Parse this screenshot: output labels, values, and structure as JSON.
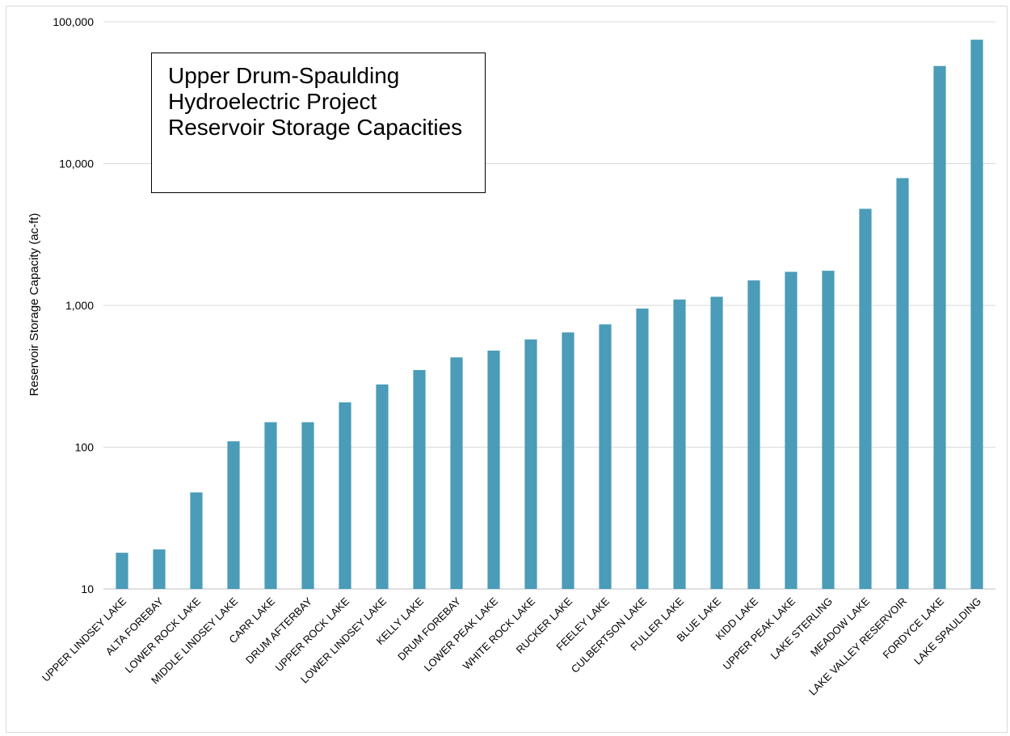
{
  "chart_data": {
    "type": "bar",
    "title": "Upper Drum-Spaulding Hydroelectric Project Reservoir Storage Capacities",
    "ylabel": "Reservoir Storage Capacity (ac-ft)",
    "xlabel": "",
    "yscale": "log",
    "ylim": [
      10,
      100000
    ],
    "yticks": [
      "10",
      "100",
      "1,000",
      "10,000",
      "100,000"
    ],
    "grid": true,
    "legend": "none",
    "bar_color": "#4a9cb8",
    "categories": [
      "UPPER LINDSEY LAKE",
      "ALTA FOREBAY",
      "LOWER ROCK LAKE",
      "MIDDLE LINDSEY LAKE",
      "CARR LAKE",
      "DRUM AFTERBAY",
      "UPPER ROCK LAKE",
      "LOWER LINDSEY LAKE",
      "KELLY LAKE",
      "DRUM FOREBAY",
      "LOWER PEAK LAKE",
      "WHITE ROCK LAKE",
      "RUCKER LAKE",
      "FEELEY LAKE",
      "CULBERTSON LAKE",
      "FULLER LAKE",
      "BLUE LAKE",
      "KIDD LAKE",
      "UPPER PEAK LAKE",
      "LAKE STERLING",
      "MEADOW LAKE",
      "LAKE VALLEY RESERVOIR",
      "FORDYCE LAKE",
      "LAKE SPAULDING"
    ],
    "values": [
      18,
      19,
      48,
      110,
      150,
      150,
      207,
      277,
      350,
      430,
      480,
      575,
      645,
      735,
      950,
      1100,
      1150,
      1500,
      1725,
      1755,
      4800,
      7900,
      48800,
      74800
    ]
  }
}
